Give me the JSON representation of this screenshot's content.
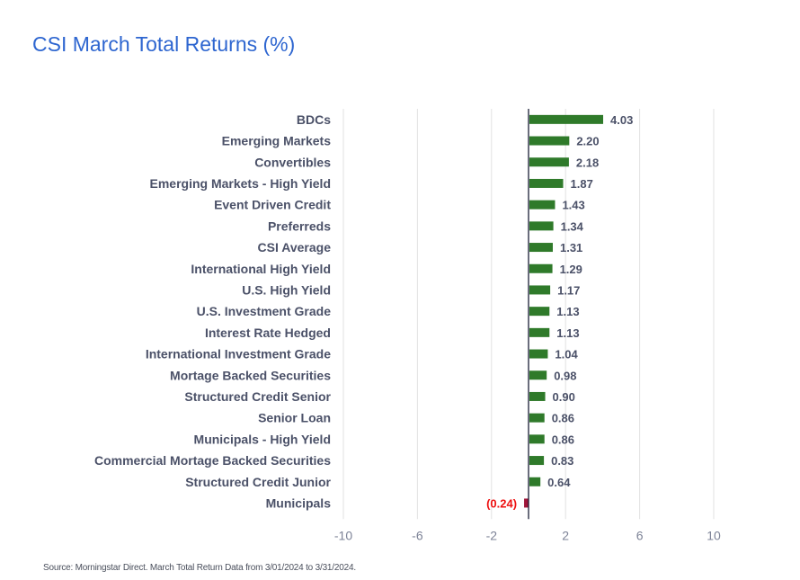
{
  "title": "CSI March Total Returns (%)",
  "source": "Source: Morningstar Direct. March Total Return Data from 3/01/2024 to 3/31/2024.",
  "colors": {
    "title": "#2e66d0",
    "positive_bar": "#2f7a2a",
    "negative_bar": "#a0163a",
    "negative_label": "#ee1111",
    "label": "#4b5168",
    "tick": "#7d8397",
    "grid": "#e2e2e2",
    "axis": "#1a1f36"
  },
  "chart_data": {
    "type": "bar",
    "orientation": "horizontal",
    "title": "CSI March Total Returns (%)",
    "xlabel": "",
    "ylabel": "",
    "xlim": [
      -10,
      10
    ],
    "x_ticks": [
      -10,
      -6,
      -2,
      2,
      6,
      10
    ],
    "grid": true,
    "legend": null,
    "categories": [
      "BDCs",
      "Emerging Markets",
      "Convertibles",
      "Emerging Markets - High Yield",
      "Event Driven Credit",
      "Preferreds",
      "CSI Average",
      "International High Yield",
      "U.S. High Yield",
      "U.S. Investment Grade",
      "Interest Rate Hedged",
      "International Investment Grade",
      "Mortage Backed Securities",
      "Structured Credit Senior",
      "Senior Loan",
      "Municipals - High Yield",
      "Commercial Mortage Backed Securities",
      "Structured Credit Junior",
      "Municipals"
    ],
    "values": [
      4.03,
      2.2,
      2.18,
      1.87,
      1.43,
      1.34,
      1.31,
      1.29,
      1.17,
      1.13,
      1.13,
      1.04,
      0.98,
      0.9,
      0.86,
      0.86,
      0.83,
      0.64,
      -0.24
    ],
    "value_labels": [
      "4.03",
      "2.20",
      "2.18",
      "1.87",
      "1.43",
      "1.34",
      "1.31",
      "1.29",
      "1.17",
      "1.13",
      "1.13",
      "1.04",
      "0.98",
      "0.90",
      "0.86",
      "0.86",
      "0.83",
      "0.64",
      "(0.24)"
    ]
  }
}
